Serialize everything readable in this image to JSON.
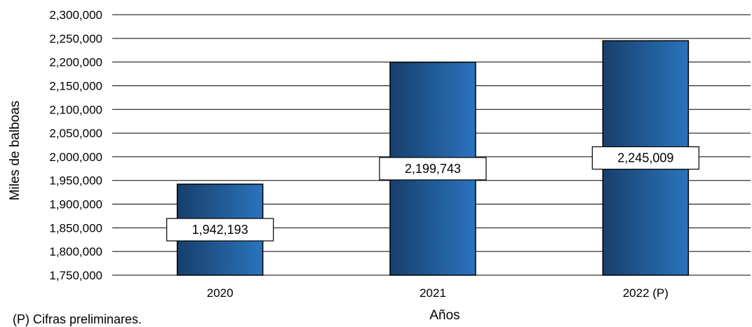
{
  "chart_data": {
    "type": "bar",
    "categories": [
      "2020",
      "2021",
      "2022 (P)"
    ],
    "values": [
      1942193,
      2199743,
      2245009
    ],
    "data_labels": [
      "1,942,193",
      "2,199,743",
      "2,245,009"
    ],
    "xlabel": "Años",
    "ylabel": "Miles de balboas",
    "ylim": [
      1750000,
      2300000
    ],
    "y_ticks": [
      1750000,
      1800000,
      1850000,
      1900000,
      1950000,
      2000000,
      2050000,
      2100000,
      2150000,
      2200000,
      2250000,
      2300000
    ],
    "y_tick_labels": [
      "1,750,000",
      "1,800,000",
      "1,850,000",
      "1,900,000",
      "1,950,000",
      "2,000,000",
      "2,050,000",
      "2,100,000",
      "2,150,000",
      "2,200,000",
      "2,250,000",
      "2,300,000"
    ],
    "grid": true,
    "legend": "none",
    "colors": {
      "bar_dark": "#173f6b",
      "bar_light": "#2a74bd",
      "gridline": "#000000"
    }
  },
  "footnote": "(P) Cifras preliminares."
}
